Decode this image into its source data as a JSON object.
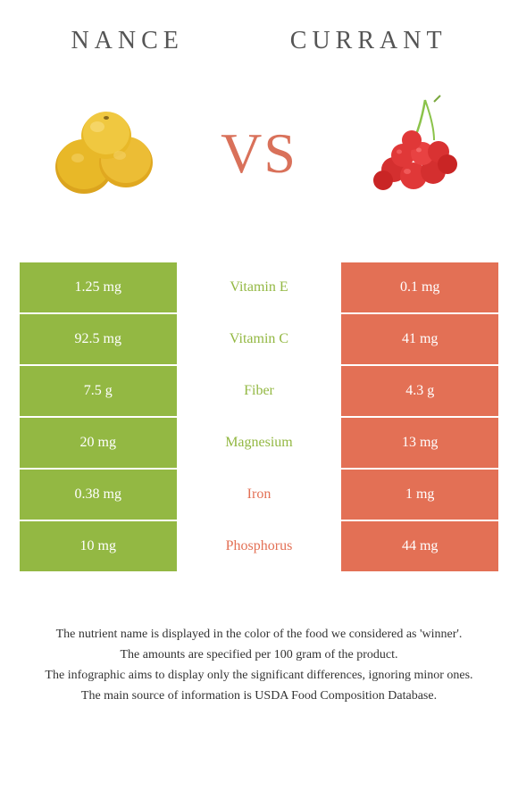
{
  "foods": {
    "left": {
      "name": "NANCE",
      "color": "#93b843",
      "img_colors": [
        "#e8b828",
        "#e0a820",
        "#dba41e"
      ]
    },
    "right": {
      "name": "CURRANT",
      "color": "#e37055",
      "img_colors": [
        "#e03838",
        "#d42f2f",
        "#c92525"
      ]
    }
  },
  "vs_label": "VS",
  "vs_color": "#d9715a",
  "nutrients": [
    {
      "left": "1.25 mg",
      "name": "Vitamin E",
      "right": "0.1 mg",
      "winner": "left"
    },
    {
      "left": "92.5 mg",
      "name": "Vitamin C",
      "right": "41 mg",
      "winner": "left"
    },
    {
      "left": "7.5 g",
      "name": "Fiber",
      "right": "4.3 g",
      "winner": "left"
    },
    {
      "left": "20 mg",
      "name": "Magnesium",
      "right": "13 mg",
      "winner": "left"
    },
    {
      "left": "0.38 mg",
      "name": "Iron",
      "right": "1 mg",
      "winner": "right"
    },
    {
      "left": "10 mg",
      "name": "Phosphorus",
      "right": "44 mg",
      "winner": "right"
    }
  ],
  "notes": [
    "The nutrient name is displayed in the color of the food we considered as 'winner'.",
    "The amounts are specified per 100 gram of the product.",
    "The infographic aims to display only the significant differences, ignoring minor ones.",
    "The main source of information is USDA Food Composition Database."
  ]
}
